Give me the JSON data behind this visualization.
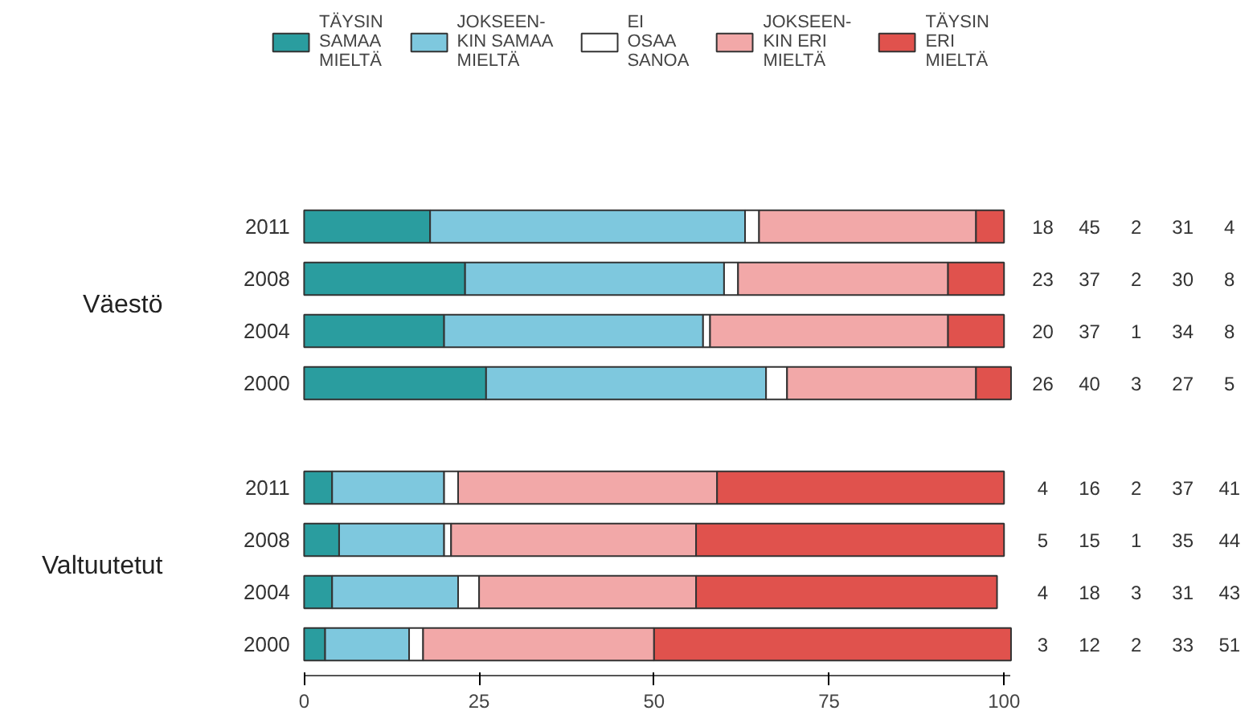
{
  "chart_data": {
    "type": "bar",
    "orientation": "horizontal",
    "stacked": true,
    "categories": [
      "2011",
      "2008",
      "2004",
      "2000",
      null,
      "2011",
      "2008",
      "2004",
      "2000"
    ],
    "series": [
      {
        "name": "TÄYSIN\nSAMAA\nMIELTÄ",
        "color": "#2a9d9f",
        "values": [
          18,
          23,
          20,
          26,
          null,
          4,
          5,
          4,
          3
        ]
      },
      {
        "name": "JOKSEEN-\nKIN SAMAA\nMIELTÄ",
        "color": "#7ec8de",
        "values": [
          45,
          37,
          37,
          40,
          null,
          16,
          15,
          18,
          12
        ]
      },
      {
        "name": "EI\nOSAA\nSANOA",
        "color": "#ffffff",
        "values": [
          2,
          2,
          1,
          3,
          null,
          2,
          1,
          3,
          2
        ]
      },
      {
        "name": "JOKSEEN-\nKIN ERI\nMIELTÄ",
        "color": "#f2a8a8",
        "values": [
          31,
          30,
          34,
          27,
          null,
          37,
          35,
          31,
          33
        ]
      },
      {
        "name": "TÄYSIN\nERI\nMIELTÄ",
        "color": "#e0524d",
        "values": [
          4,
          8,
          8,
          5,
          null,
          41,
          44,
          43,
          51
        ]
      }
    ],
    "xlim": [
      0,
      101
    ],
    "xticks": [
      0,
      25,
      50,
      75,
      100
    ],
    "grid": false,
    "legend": "top",
    "data_labels": true,
    "annotations": [
      "Väestö",
      "Valtuutetut"
    ]
  }
}
